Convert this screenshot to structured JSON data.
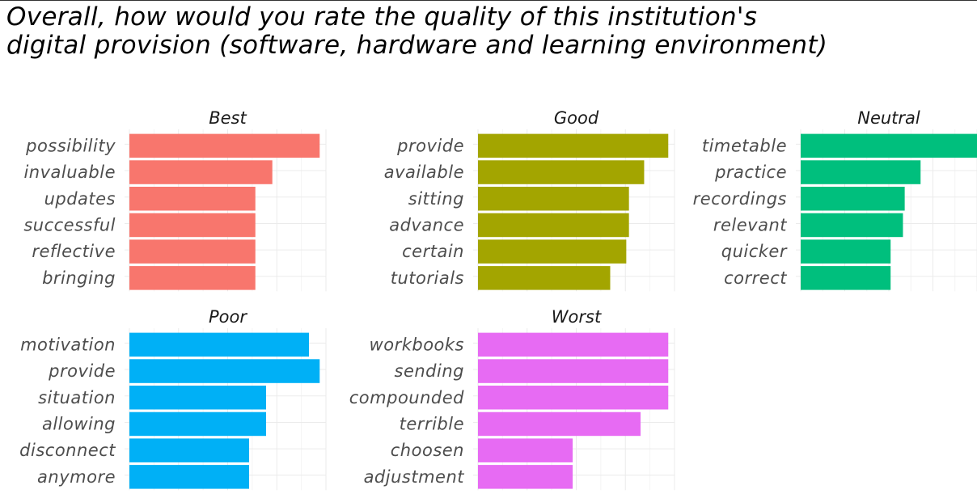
{
  "title": {
    "line1": "Overall, how would you rate the quality of this institution's",
    "line2": "digital provision (software, hardware and learning environment)"
  },
  "chart_data": [
    {
      "type": "bar",
      "orientation": "horizontal",
      "panel": "Best",
      "color": "#F8766D",
      "categories": [
        "possibility",
        "invaluable",
        "updates",
        "successful",
        "reflective",
        "bringing"
      ],
      "values": [
        0.00213,
        0.0016,
        0.00141,
        0.00141,
        0.00141,
        0.00141
      ],
      "xlim": [
        0,
        0.0022
      ],
      "ylabel": "",
      "grid": true
    },
    {
      "type": "bar",
      "orientation": "horizontal",
      "panel": "Good",
      "color": "#A3A500",
      "categories": [
        "provide",
        "available",
        "sitting",
        "advance",
        "certain",
        "tutorials"
      ],
      "values": [
        0.00213,
        0.00186,
        0.00169,
        0.00169,
        0.00166,
        0.00148
      ],
      "xlim": [
        0,
        0.0022
      ],
      "grid": true
    },
    {
      "type": "bar",
      "orientation": "horizontal",
      "panel": "Neutral",
      "color": "#00BF7D",
      "categories": [
        "timetable",
        "practice",
        "recordings",
        "relevant",
        "quicker",
        "correct"
      ],
      "values": [
        0.002,
        0.00136,
        0.00118,
        0.00116,
        0.00102,
        0.00102
      ],
      "xlim": [
        0,
        0.002
      ],
      "grid": true
    },
    {
      "type": "bar",
      "orientation": "horizontal",
      "panel": "Poor",
      "color": "#00B0F6",
      "categories": [
        "motivation",
        "provide",
        "situation",
        "allowing",
        "disconnect",
        "anymore"
      ],
      "values": [
        0.00201,
        0.00213,
        0.00153,
        0.00153,
        0.00134,
        0.00134
      ],
      "xlim": [
        0,
        0.0022
      ],
      "grid": true
    },
    {
      "type": "bar",
      "orientation": "horizontal",
      "panel": "Worst",
      "color": "#E76BF3",
      "categories": [
        "workbooks",
        "sending",
        "compounded",
        "terrible",
        "choosen",
        "adjustment"
      ],
      "values": [
        0.00213,
        0.00213,
        0.00213,
        0.00182,
        0.00106,
        0.00106
      ],
      "xlim": [
        0,
        0.0022
      ],
      "grid": true
    }
  ]
}
